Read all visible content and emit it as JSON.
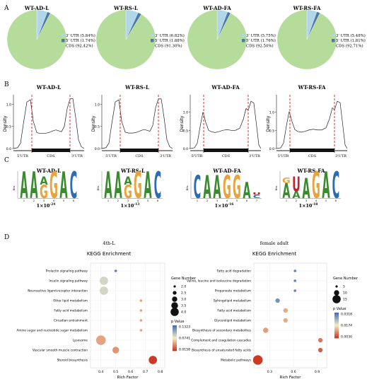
{
  "panel_labels": [
    "A",
    "B",
    "C",
    "D"
  ],
  "colors": {
    "utr3": "#b0d6e8",
    "utr5": "#4b79a8",
    "cds": "#b6dc9c",
    "red_dash": "#e03030",
    "motif_A": "#3a8a2e",
    "motif_G": "#e8a43a",
    "motif_C": "#2d6cb0",
    "motif_U": "#c0272d",
    "pval_high": "#cc3a24",
    "pval_mid": "#f2eec4",
    "pval_low": "#4a6fb8"
  },
  "chart_data": [
    {
      "type": "pie",
      "panel": "A",
      "title": "WT-AD-L",
      "slices": [
        {
          "label": "3' UTR (5.84%)",
          "value": 5.84
        },
        {
          "label": "5' UTR (1.74%)",
          "value": 1.74
        },
        {
          "label": "CDS (92.42%)",
          "value": 92.42
        }
      ]
    },
    {
      "type": "pie",
      "panel": "A",
      "title": "WT-RS-L",
      "slices": [
        {
          "label": "3' UTR (6.82%)",
          "value": 6.82
        },
        {
          "label": "5' UTR (1.88%)",
          "value": 1.88
        },
        {
          "label": "CDS (91.30%)",
          "value": 91.3
        }
      ]
    },
    {
      "type": "pie",
      "panel": "A",
      "title": "WT-AD-FA",
      "slices": [
        {
          "label": "3' UTR (5.75%)",
          "value": 5.75
        },
        {
          "label": "5' UTR (1.76%)",
          "value": 1.76
        },
        {
          "label": "CDS (92.50%)",
          "value": 92.5
        }
      ]
    },
    {
      "type": "pie",
      "panel": "A",
      "title": "WT-RS-FA",
      "slices": [
        {
          "label": "3' UTR (5.48%)",
          "value": 5.48
        },
        {
          "label": "5' UTR (1.81%)",
          "value": 1.81
        },
        {
          "label": "CDS (92.71%)",
          "value": 92.71
        }
      ]
    },
    {
      "type": "line",
      "panel": "B",
      "title": "WT-AD-L",
      "ylabel": "Density",
      "yticks": [
        "0.0",
        "0.5",
        "1.0"
      ],
      "ylim": [
        0,
        1.15
      ],
      "region_labels": [
        "5'UTR",
        "CDS",
        "3'UTR"
      ],
      "x": [
        0,
        0.06,
        0.1,
        0.14,
        0.19,
        0.24,
        0.28,
        0.33,
        0.38,
        0.44,
        0.5,
        0.56,
        0.6,
        0.64,
        0.68,
        0.72,
        0.76,
        0.8,
        0.84,
        0.88,
        0.92,
        0.96,
        1.0
      ],
      "y": [
        0.0,
        0.02,
        0.12,
        0.55,
        1.05,
        1.1,
        0.62,
        0.36,
        0.34,
        0.34,
        0.36,
        0.4,
        0.42,
        0.4,
        0.38,
        0.5,
        0.9,
        1.12,
        1.13,
        0.7,
        0.2,
        0.04,
        0.0
      ],
      "boundaries": [
        0.26,
        0.8
      ]
    },
    {
      "type": "line",
      "panel": "B",
      "title": "WT-RS-L",
      "ylabel": "Density",
      "yticks": [
        "0.0",
        "0.5",
        "1.0"
      ],
      "ylim": [
        0,
        1.15
      ],
      "region_labels": [
        "5'UTR",
        "CDS",
        "3'UTR"
      ],
      "x": [
        0,
        0.06,
        0.1,
        0.14,
        0.19,
        0.24,
        0.28,
        0.33,
        0.38,
        0.44,
        0.5,
        0.56,
        0.6,
        0.64,
        0.68,
        0.72,
        0.76,
        0.8,
        0.84,
        0.88,
        0.92,
        0.96,
        1.0
      ],
      "y": [
        0.0,
        0.02,
        0.12,
        0.55,
        1.05,
        1.1,
        0.62,
        0.37,
        0.35,
        0.35,
        0.37,
        0.41,
        0.43,
        0.41,
        0.39,
        0.52,
        0.92,
        1.12,
        1.12,
        0.7,
        0.2,
        0.04,
        0.0
      ],
      "boundaries": [
        0.26,
        0.8
      ]
    },
    {
      "type": "line",
      "panel": "B",
      "title": "WT-AD-FA",
      "ylabel": "Density",
      "yticks": [
        "0.0",
        "0.5",
        "1.0"
      ],
      "ylim": [
        0,
        1.4
      ],
      "region_labels": [
        "5'UTR",
        "CDS",
        "3'UTR"
      ],
      "x": [
        0,
        0.06,
        0.1,
        0.14,
        0.18,
        0.22,
        0.26,
        0.3,
        0.35,
        0.4,
        0.46,
        0.52,
        0.58,
        0.64,
        0.7,
        0.75,
        0.79,
        0.82,
        0.86,
        0.9,
        0.94,
        0.97,
        1.0
      ],
      "y": [
        0.0,
        0.02,
        0.15,
        0.6,
        1.0,
        0.72,
        0.5,
        0.46,
        0.44,
        0.46,
        0.5,
        0.52,
        0.5,
        0.5,
        0.56,
        0.8,
        1.1,
        1.05,
        1.3,
        1.25,
        0.6,
        0.1,
        0.0
      ],
      "boundaries": [
        0.19,
        0.82
      ]
    },
    {
      "type": "line",
      "panel": "B",
      "title": "WT-RS-FA",
      "ylabel": "Density",
      "yticks": [
        "0.0",
        "0.5",
        "1.0"
      ],
      "ylim": [
        0,
        1.4
      ],
      "region_labels": [
        "5'UTR",
        "CDS",
        "3'UTR"
      ],
      "x": [
        0,
        0.06,
        0.1,
        0.14,
        0.18,
        0.22,
        0.26,
        0.3,
        0.35,
        0.4,
        0.46,
        0.52,
        0.58,
        0.64,
        0.7,
        0.75,
        0.79,
        0.82,
        0.86,
        0.9,
        0.94,
        0.97,
        1.0
      ],
      "y": [
        0.0,
        0.02,
        0.15,
        0.62,
        1.02,
        0.74,
        0.52,
        0.47,
        0.45,
        0.47,
        0.51,
        0.53,
        0.51,
        0.51,
        0.57,
        0.82,
        1.12,
        1.06,
        1.3,
        1.26,
        0.6,
        0.1,
        0.0
      ],
      "boundaries": [
        0.19,
        0.82
      ]
    },
    {
      "type": "other",
      "panel": "C",
      "title": "WT-AD-L",
      "ylabel": "Bits",
      "pvalue_base": "1×10",
      "pvalue_exp": "-24",
      "positions": [
        {
          "letters": [
            {
              "ch": "A",
              "h": 1.0
            }
          ]
        },
        {
          "letters": [
            {
              "ch": "A",
              "h": 1.0
            }
          ]
        },
        {
          "letters": [
            {
              "ch": "G",
              "h": 0.5
            },
            {
              "ch": "A",
              "h": 0.3
            }
          ]
        },
        {
          "letters": [
            {
              "ch": "G",
              "h": 1.0
            }
          ]
        },
        {
          "letters": [
            {
              "ch": "A",
              "h": 1.0
            }
          ]
        },
        {
          "letters": [
            {
              "ch": "C",
              "h": 1.0
            }
          ]
        }
      ]
    },
    {
      "type": "other",
      "panel": "C",
      "title": "WT-RS-L",
      "ylabel": "Bits",
      "pvalue_base": "1×10",
      "pvalue_exp": "-13",
      "positions": [
        {
          "letters": [
            {
              "ch": "A",
              "h": 1.0
            }
          ]
        },
        {
          "letters": [
            {
              "ch": "A",
              "h": 1.0
            }
          ]
        },
        {
          "letters": [
            {
              "ch": "G",
              "h": 0.5
            },
            {
              "ch": "A",
              "h": 0.3
            }
          ]
        },
        {
          "letters": [
            {
              "ch": "G",
              "h": 1.0
            }
          ]
        },
        {
          "letters": [
            {
              "ch": "A",
              "h": 1.0
            }
          ]
        },
        {
          "letters": [
            {
              "ch": "C",
              "h": 1.0
            }
          ]
        }
      ]
    },
    {
      "type": "other",
      "panel": "C",
      "title": "WT-AD-FA",
      "ylabel": "Bits",
      "pvalue_base": "1×10",
      "pvalue_exp": "-16",
      "positions": [
        {
          "letters": [
            {
              "ch": "C",
              "h": 0.85
            }
          ]
        },
        {
          "letters": [
            {
              "ch": "A",
              "h": 0.85
            }
          ]
        },
        {
          "letters": [
            {
              "ch": "A",
              "h": 0.85
            }
          ]
        },
        {
          "letters": [
            {
              "ch": "G",
              "h": 0.85
            }
          ]
        },
        {
          "letters": [
            {
              "ch": "G",
              "h": 0.85
            }
          ]
        },
        {
          "letters": [
            {
              "ch": "A",
              "h": 0.6
            }
          ]
        },
        {
          "letters": [
            {
              "ch": "C",
              "h": 0.12
            },
            {
              "ch": "U",
              "h": 0.08
            }
          ]
        }
      ]
    },
    {
      "type": "other",
      "panel": "C",
      "title": "WT-RS-FA",
      "ylabel": "Bits",
      "pvalue_base": "1×10",
      "pvalue_exp": "-18",
      "positions": [
        {
          "letters": [
            {
              "ch": "A",
              "h": 0.55
            },
            {
              "ch": "G",
              "h": 0.2
            }
          ]
        },
        {
          "letters": [
            {
              "ch": "A",
              "h": 0.25
            },
            {
              "ch": "U",
              "h": 0.55
            }
          ]
        },
        {
          "letters": [
            {
              "ch": "A",
              "h": 0.75
            }
          ]
        },
        {
          "letters": [
            {
              "ch": "G",
              "h": 1.0
            }
          ]
        },
        {
          "letters": [
            {
              "ch": "A",
              "h": 1.0
            }
          ]
        },
        {
          "letters": [
            {
              "ch": "C",
              "h": 1.0
            }
          ]
        }
      ]
    },
    {
      "type": "scatter",
      "panel": "D",
      "heading": "4th-L",
      "title": "KEGG Enrichment",
      "xlabel": "Rich Factor",
      "xlim": [
        0.33,
        0.83
      ],
      "xticks": [
        0.4,
        0.5,
        0.6,
        0.7,
        0.8
      ],
      "legend_size_title": "Gene Number",
      "legend_size_ticks": [
        "2.0",
        "2.5",
        "3.0",
        "3.5",
        "4.0"
      ],
      "legend_color_title": "p Value",
      "legend_color_ticks": [
        "0.1323",
        "0.0741",
        "0.0158"
      ],
      "pmin": 0.0158,
      "pmax": 0.1323,
      "gmin": 1,
      "gmax": 4,
      "pathways": [
        {
          "name": "Prolactin signaling pathway",
          "rich": 0.5,
          "gene": 1,
          "p": 0.125
        },
        {
          "name": "Insulin signaling pathway",
          "rich": 0.42,
          "gene": 3,
          "p": 0.085
        },
        {
          "name": "Neuroactive ligand-receptor interaction",
          "rich": 0.42,
          "gene": 3,
          "p": 0.085
        },
        {
          "name": "Ether lipid metabolism",
          "rich": 0.67,
          "gene": 1,
          "p": 0.05
        },
        {
          "name": "Fatty acid metabolism",
          "rich": 0.67,
          "gene": 1,
          "p": 0.05
        },
        {
          "name": "Circadian entrainment",
          "rich": 0.67,
          "gene": 1,
          "p": 0.05
        },
        {
          "name": "Amino sugar and nucleotide sugar metabolism",
          "rich": 0.67,
          "gene": 1,
          "p": 0.05
        },
        {
          "name": "Lysosome",
          "rich": 0.4,
          "gene": 4,
          "p": 0.05
        },
        {
          "name": "Vascular smooth muscle contraction",
          "rich": 0.5,
          "gene": 2,
          "p": 0.045
        },
        {
          "name": "Steroid biosynthesis",
          "rich": 0.75,
          "gene": 3,
          "p": 0.0158
        }
      ]
    },
    {
      "type": "scatter",
      "panel": "D",
      "heading": "female adult",
      "title": "KEGG Enrichment",
      "xlabel": "Rich Factor",
      "xlim": [
        0.1,
        1.02
      ],
      "xticks": [
        0.3,
        0.6,
        0.9
      ],
      "legend_size_title": "Gene Number",
      "legend_size_ticks": [
        "5",
        "10",
        "15"
      ],
      "legend_color_title": "p Value",
      "legend_color_ticks": [
        "0.0318",
        "0.0174",
        "0.0030"
      ],
      "pmin": 0.003,
      "pmax": 0.0318,
      "gmin": 1,
      "gmax": 15,
      "pathways": [
        {
          "name": "Fatty acid degradation",
          "rich": 0.62,
          "gene": 1,
          "p": 0.03
        },
        {
          "name": "Valine, leucine and isoleucine degradation",
          "rich": 0.62,
          "gene": 1,
          "p": 0.03
        },
        {
          "name": "Propanoate metabolism",
          "rich": 0.62,
          "gene": 1,
          "p": 0.03
        },
        {
          "name": "Sphingolipid metabolism",
          "rich": 0.4,
          "gene": 2,
          "p": 0.028
        },
        {
          "name": "Fatty acid metabolism",
          "rich": 0.5,
          "gene": 2,
          "p": 0.012
        },
        {
          "name": "Glycerolipid metabolism",
          "rich": 0.5,
          "gene": 2,
          "p": 0.012
        },
        {
          "name": "Biosynthesis of secondary metabolites",
          "rich": 0.25,
          "gene": 3,
          "p": 0.011
        },
        {
          "name": "Complement and coagulation cascades",
          "rich": 0.94,
          "gene": 2,
          "p": 0.008
        },
        {
          "name": "Biosynthesis of unsaturated fatty acids",
          "rich": 0.94,
          "gene": 2,
          "p": 0.006
        },
        {
          "name": "Metabolic pathways",
          "rich": 0.15,
          "gene": 15,
          "p": 0.003
        }
      ]
    }
  ]
}
